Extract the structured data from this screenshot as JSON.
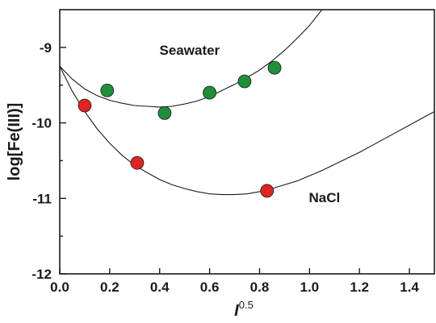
{
  "chart_data": {
    "type": "scatter",
    "xlabel_main": "I",
    "xlabel_sup": "0.5",
    "ylabel": "log[Fe(III)]",
    "xlim": [
      0.0,
      1.5
    ],
    "ylim": [
      -12,
      -8.5
    ],
    "x_ticks": [
      0.0,
      0.2,
      0.4,
      0.6,
      0.8,
      1.0,
      1.2,
      1.4
    ],
    "x_tick_labels": [
      "0.0",
      "0.2",
      "0.4",
      "0.6",
      "0.8",
      "1.0",
      "1.2",
      "1.4"
    ],
    "y_ticks": [
      -12,
      -11,
      -10,
      -9
    ],
    "y_tick_labels": [
      "-12",
      "-11",
      "-10",
      "-9"
    ],
    "grid": false,
    "annotations": [
      {
        "text": "Seawater",
        "x": 0.52,
        "y": -9.1
      },
      {
        "text": "NaCl",
        "x": 1.06,
        "y": -11.05
      }
    ],
    "series": [
      {
        "color": "#1f8f3a",
        "points": [
          {
            "x": 0.19,
            "y": -9.57
          },
          {
            "x": 0.42,
            "y": -9.87
          },
          {
            "x": 0.6,
            "y": -9.6
          },
          {
            "x": 0.74,
            "y": -9.45
          },
          {
            "x": 0.86,
            "y": -9.27
          }
        ],
        "fit_curve": [
          [
            0.0,
            -9.25
          ],
          [
            0.05,
            -9.42
          ],
          [
            0.1,
            -9.55
          ],
          [
            0.15,
            -9.64
          ],
          [
            0.2,
            -9.7
          ],
          [
            0.25,
            -9.74
          ],
          [
            0.3,
            -9.77
          ],
          [
            0.35,
            -9.78
          ],
          [
            0.4,
            -9.79
          ],
          [
            0.45,
            -9.78
          ],
          [
            0.5,
            -9.75
          ],
          [
            0.55,
            -9.71
          ],
          [
            0.6,
            -9.65
          ],
          [
            0.65,
            -9.57
          ],
          [
            0.7,
            -9.49
          ],
          [
            0.75,
            -9.4
          ],
          [
            0.8,
            -9.3
          ],
          [
            0.85,
            -9.18
          ],
          [
            0.9,
            -9.04
          ],
          [
            0.95,
            -8.88
          ],
          [
            1.0,
            -8.71
          ],
          [
            1.05,
            -8.5
          ]
        ]
      },
      {
        "color": "#e02424",
        "points": [
          {
            "x": 0.1,
            "y": -9.77
          },
          {
            "x": 0.31,
            "y": -10.53
          },
          {
            "x": 0.83,
            "y": -10.9
          }
        ],
        "fit_curve": [
          [
            0.0,
            -9.25
          ],
          [
            0.05,
            -9.58
          ],
          [
            0.1,
            -9.85
          ],
          [
            0.15,
            -10.08
          ],
          [
            0.2,
            -10.27
          ],
          [
            0.25,
            -10.43
          ],
          [
            0.3,
            -10.56
          ],
          [
            0.35,
            -10.66
          ],
          [
            0.4,
            -10.75
          ],
          [
            0.45,
            -10.82
          ],
          [
            0.5,
            -10.87
          ],
          [
            0.55,
            -10.91
          ],
          [
            0.6,
            -10.94
          ],
          [
            0.65,
            -10.95
          ],
          [
            0.7,
            -10.95
          ],
          [
            0.75,
            -10.94
          ],
          [
            0.8,
            -10.91
          ],
          [
            0.85,
            -10.87
          ],
          [
            0.9,
            -10.82
          ],
          [
            0.95,
            -10.77
          ],
          [
            1.0,
            -10.7
          ],
          [
            1.05,
            -10.63
          ],
          [
            1.1,
            -10.55
          ],
          [
            1.15,
            -10.47
          ],
          [
            1.2,
            -10.39
          ],
          [
            1.25,
            -10.3
          ],
          [
            1.3,
            -10.21
          ],
          [
            1.35,
            -10.12
          ],
          [
            1.4,
            -10.03
          ],
          [
            1.45,
            -9.94
          ],
          [
            1.5,
            -9.85
          ]
        ]
      }
    ]
  }
}
